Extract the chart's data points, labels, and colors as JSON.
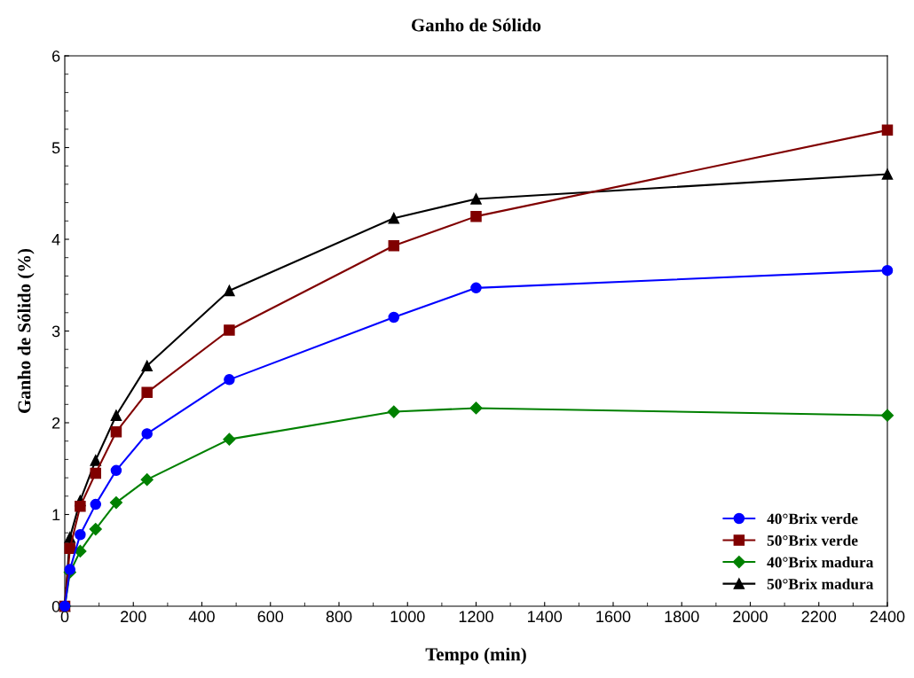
{
  "chart_data": {
    "type": "line",
    "title": "Ganho de Sólido",
    "xlabel": "Tempo (min)",
    "ylabel": "Ganho de Sólido (%)",
    "x": [
      0,
      15,
      45,
      90,
      150,
      240,
      480,
      960,
      1200,
      2400
    ],
    "series": [
      {
        "name": "40°Brix verde",
        "color": "#0000ff",
        "marker": "circle",
        "values": [
          0,
          0.4,
          0.78,
          1.11,
          1.48,
          1.88,
          2.47,
          3.15,
          3.47,
          3.66
        ]
      },
      {
        "name": "50°Brix verde",
        "color": "#800000",
        "marker": "square",
        "values": [
          0,
          0.63,
          1.09,
          1.45,
          1.9,
          2.33,
          3.01,
          3.93,
          4.25,
          5.19
        ]
      },
      {
        "name": "40°Brix madura",
        "color": "#008000",
        "marker": "diamond",
        "values": [
          0,
          0.37,
          0.6,
          0.84,
          1.13,
          1.38,
          1.82,
          2.12,
          2.16,
          2.08
        ]
      },
      {
        "name": "50°Brix madura",
        "color": "#000000",
        "marker": "triangle",
        "values": [
          0,
          0.75,
          1.15,
          1.59,
          2.08,
          2.62,
          3.44,
          4.23,
          4.44,
          4.71
        ]
      }
    ],
    "xlim": [
      0,
      2400
    ],
    "xticks": [
      0,
      200,
      400,
      600,
      800,
      1000,
      1200,
      1400,
      1600,
      1800,
      2000,
      2200,
      2400
    ],
    "ylim": [
      0,
      6
    ],
    "yticks": [
      0,
      1,
      2,
      3,
      4,
      5,
      6
    ],
    "grid": false,
    "legend": "bottom right",
    "line_style": "solid"
  }
}
